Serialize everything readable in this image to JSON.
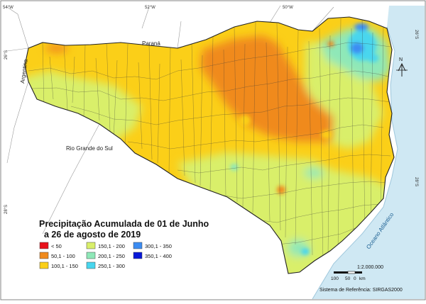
{
  "map": {
    "ticks": {
      "top": [
        "54°W",
        "52°W",
        "50°W"
      ],
      "right": [
        "26°S",
        "28°S"
      ],
      "left": [
        "26°S",
        "28°S"
      ]
    },
    "labels": {
      "parana": "Paraná",
      "argentina": "Argentina",
      "rio_grande": "Rio Grande do Sul",
      "ocean": "Oceano Atlântico"
    },
    "north": "N",
    "title_line1": "Precipitação Acumulada de 01 de Junho",
    "title_line2": "a 26 de agosto de 2019",
    "legend": [
      {
        "label": "< 50",
        "color": "#e8121b"
      },
      {
        "label": "50,1 - 100",
        "color": "#f08a1c"
      },
      {
        "label": "100,1 - 150",
        "color": "#fbcf18"
      },
      {
        "label": "150,1 - 200",
        "color": "#d9ef6a"
      },
      {
        "label": "200,1 - 250",
        "color": "#8fe8b8"
      },
      {
        "label": "250,1 - 300",
        "color": "#48d6ee"
      },
      {
        "label": "300,1 - 350",
        "color": "#3c8cf2"
      },
      {
        "label": "350,1 - 400",
        "color": "#0818d8"
      }
    ],
    "scale_text": "1:2.000.000",
    "scale_bar": [
      "100",
      "50",
      "0",
      "km"
    ],
    "reference": "Sistema de Referência: SIRGAS2000"
  }
}
